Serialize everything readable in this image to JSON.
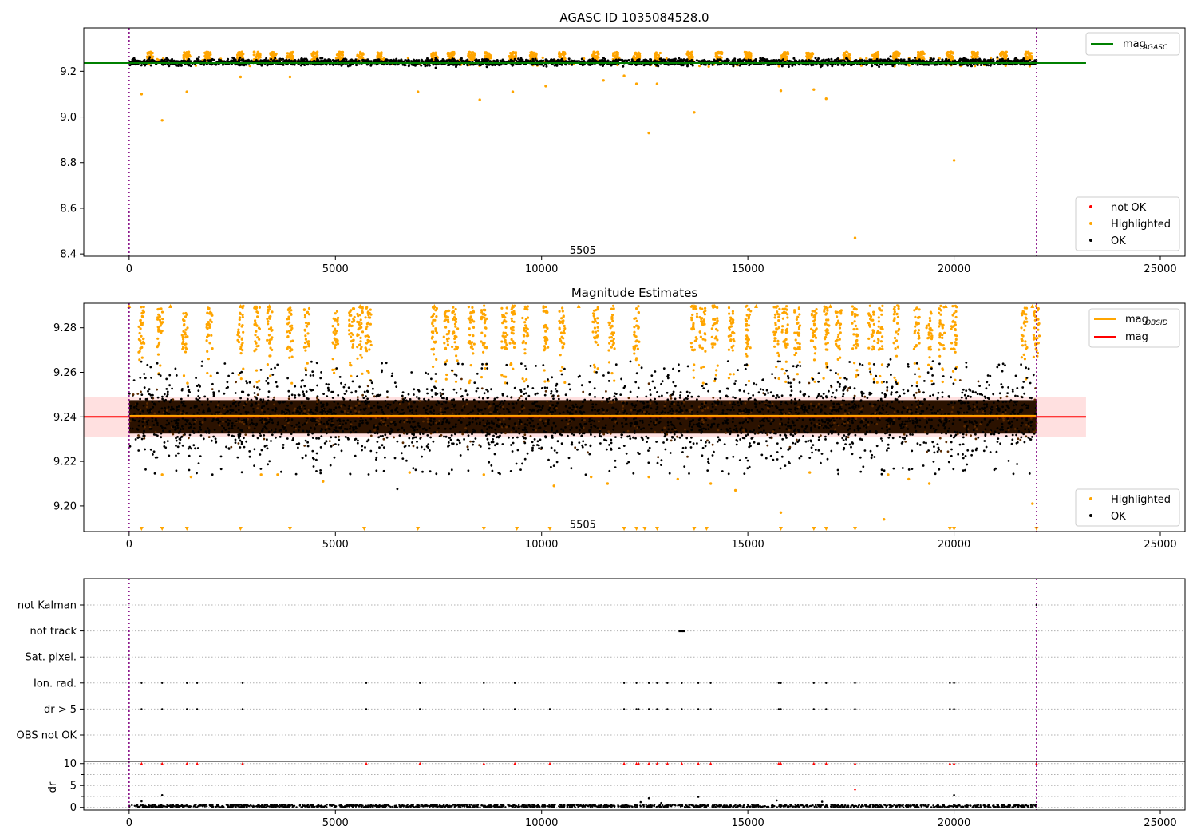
{
  "figure": {
    "title": "AGASC ID 1035084528.0"
  },
  "chart_data": [
    {
      "type": "scatter",
      "title": "AGASC ID 1035084528.0",
      "xlim": [
        -1100,
        25600
      ],
      "ylim": [
        8.39,
        9.39
      ],
      "xticks": [
        0,
        5000,
        10000,
        15000,
        20000,
        25000
      ],
      "yticks": [
        8.4,
        8.6,
        8.8,
        9.0,
        9.2
      ],
      "ytick_decimals": 1,
      "vlines": [
        0,
        22000
      ],
      "obs_label": {
        "text": "5505",
        "x": 11000,
        "y": 8.415
      },
      "legend_lines": [
        {
          "label": "mag",
          "sub": "AGASC",
          "color": "#008000"
        }
      ],
      "legend_points": [
        {
          "label": "not OK",
          "color": "#ff0000"
        },
        {
          "label": "Highlighted",
          "color": "#ffa500"
        },
        {
          "label": "OK",
          "color": "#000000"
        }
      ],
      "hline": {
        "y": 9.236,
        "x0": -1100,
        "x1": 23200,
        "color": "#008000"
      },
      "ok_band": {
        "x0": 0,
        "x1": 22000,
        "center": 9.24,
        "halfwidth": 0.012
      },
      "highlight_columns": [
        500,
        1400,
        1900,
        2700,
        3100,
        3500,
        3900,
        4500,
        5100,
        5600,
        6100,
        7400,
        7800,
        8300,
        8700,
        9300,
        9800,
        10500,
        11300,
        11800,
        12300,
        12800,
        13600,
        14300,
        15000,
        15900,
        16500,
        17400,
        18100,
        18600,
        19200,
        19900,
        20500,
        21200,
        21800
      ],
      "highlight_column_range": [
        9.245,
        9.285
      ],
      "highlight_outliers": [
        {
          "x": 300,
          "y": 9.1
        },
        {
          "x": 800,
          "y": 8.985
        },
        {
          "x": 1400,
          "y": 9.11
        },
        {
          "x": 2700,
          "y": 9.175
        },
        {
          "x": 3900,
          "y": 9.175
        },
        {
          "x": 7000,
          "y": 9.11
        },
        {
          "x": 8500,
          "y": 9.075
        },
        {
          "x": 9300,
          "y": 9.11
        },
        {
          "x": 10100,
          "y": 9.135
        },
        {
          "x": 11500,
          "y": 9.16
        },
        {
          "x": 12000,
          "y": 9.18
        },
        {
          "x": 12300,
          "y": 9.145
        },
        {
          "x": 12600,
          "y": 8.93
        },
        {
          "x": 12800,
          "y": 9.145
        },
        {
          "x": 13700,
          "y": 9.02
        },
        {
          "x": 15800,
          "y": 9.115
        },
        {
          "x": 16600,
          "y": 9.12
        },
        {
          "x": 16900,
          "y": 9.08
        },
        {
          "x": 17600,
          "y": 8.47
        },
        {
          "x": 20000,
          "y": 8.81
        }
      ]
    },
    {
      "type": "scatter",
      "title": "Magnitude Estimates",
      "xlim": [
        -1100,
        25600
      ],
      "ylim": [
        9.1885,
        9.291
      ],
      "xticks": [
        0,
        5000,
        10000,
        15000,
        20000,
        25000
      ],
      "yticks": [
        9.2,
        9.22,
        9.24,
        9.26,
        9.28
      ],
      "ytick_decimals": 2,
      "vlines": [
        0,
        22000
      ],
      "obs_label": {
        "text": "5505",
        "x": 11000,
        "y": 9.1915
      },
      "legend_lines": [
        {
          "label": "mag",
          "sub": "OBSID",
          "color": "#ffa500"
        },
        {
          "label": "mag",
          "sub": "",
          "color": "#ff0000"
        }
      ],
      "legend_points": [
        {
          "label": "Highlighted",
          "color": "#ffa500"
        },
        {
          "label": "OK",
          "color": "#000000"
        }
      ],
      "mag_line": {
        "y": 9.24,
        "x0": -1100,
        "x1": 23200,
        "color": "#ff0000"
      },
      "mag_band": {
        "y0": 9.231,
        "y1": 9.249,
        "x0": -1100,
        "x1": 23200
      },
      "obs_mag_line": {
        "y": 9.2405,
        "x0": 0,
        "x1": 22000,
        "color": "#ffa500"
      },
      "ok_band": {
        "x0": 0,
        "x1": 22000,
        "center": 9.24,
        "halfwidth": 0.009
      },
      "ok_outlier_range": [
        9.214,
        9.265
      ],
      "highlight_columns": [
        300,
        750,
        1350,
        1950,
        2700,
        3100,
        3400,
        3900,
        4300,
        5000,
        5400,
        5600,
        5800,
        7400,
        7700,
        7900,
        8300,
        8600,
        9100,
        9300,
        9600,
        10100,
        10500,
        11300,
        11700,
        12300,
        13700,
        13900,
        14200,
        14600,
        15000,
        15700,
        15900,
        16200,
        16600,
        16900,
        17200,
        17600,
        18000,
        18200,
        18600,
        19100,
        19400,
        19700,
        20000,
        21700,
        22000
      ],
      "highlight_column_range": [
        9.27,
        9.29
      ],
      "highlight_low": [
        {
          "x": 800,
          "y": 9.214
        },
        {
          "x": 1500,
          "y": 9.213
        },
        {
          "x": 3200,
          "y": 9.214
        },
        {
          "x": 3600,
          "y": 9.214
        },
        {
          "x": 4700,
          "y": 9.211
        },
        {
          "x": 6800,
          "y": 9.215
        },
        {
          "x": 8600,
          "y": 9.214
        },
        {
          "x": 10300,
          "y": 9.209
        },
        {
          "x": 11200,
          "y": 9.213
        },
        {
          "x": 11600,
          "y": 9.21
        },
        {
          "x": 12600,
          "y": 9.213
        },
        {
          "x": 13300,
          "y": 9.212
        },
        {
          "x": 14100,
          "y": 9.21
        },
        {
          "x": 14700,
          "y": 9.207
        },
        {
          "x": 15800,
          "y": 9.197
        },
        {
          "x": 16500,
          "y": 9.215
        },
        {
          "x": 18300,
          "y": 9.194
        },
        {
          "x": 18400,
          "y": 9.214
        },
        {
          "x": 18900,
          "y": 9.212
        },
        {
          "x": 19400,
          "y": 9.21
        },
        {
          "x": 21900,
          "y": 9.201
        }
      ],
      "clip_up": [
        0,
        1000,
        2700,
        3400,
        5600,
        7400,
        9300,
        10900,
        13700,
        14200,
        15200,
        17000,
        19800,
        21900
      ],
      "clip_down": [
        300,
        800,
        1400,
        2700,
        3900,
        5700,
        7000,
        8600,
        9400,
        10200,
        12000,
        12300,
        12500,
        12800,
        13700,
        14000,
        15800,
        16600,
        16900,
        17600,
        19900,
        20000,
        22000
      ]
    },
    {
      "type": "scatter",
      "title": "",
      "xlim": [
        -1100,
        25600
      ],
      "xticks": [
        0,
        5000,
        10000,
        15000,
        20000,
        25000
      ],
      "categories": [
        "not Kalman",
        "not track",
        "Sat. pixel.",
        "Ion. rad.",
        "dr > 5",
        "OBS not OK"
      ],
      "flag_events": {
        "Ion. rad.": [
          300,
          800,
          1400,
          1650,
          2750,
          5750,
          7050,
          8600,
          9350,
          12000,
          12300,
          12600,
          12800,
          13050,
          13400,
          13800,
          14100,
          15750,
          15800,
          16600,
          16900,
          17600,
          19900,
          20000
        ],
        "dr > 5": [
          300,
          800,
          1400,
          1650,
          2750,
          5750,
          7050,
          8600,
          9350,
          10200,
          12000,
          12300,
          12350,
          12600,
          12800,
          13050,
          13400,
          13800,
          14100,
          15750,
          15800,
          16600,
          16900,
          17600,
          19900,
          20000
        ],
        "not track": [
          13350,
          13400,
          13450
        ],
        "not Kalman": [
          22000
        ]
      },
      "vlines": [
        0,
        22000
      ]
    },
    {
      "type": "scatter",
      "title": "",
      "ylabel": "dr",
      "xlim": [
        -1100,
        25600
      ],
      "ylim": [
        -0.6,
        10.5
      ],
      "xticks": [
        0,
        5000,
        10000,
        15000,
        20000,
        25000
      ],
      "yticks": [
        0,
        5,
        10
      ],
      "dr_band": [
        0,
        0.6
      ],
      "dr_spikes": [
        {
          "x": 300,
          "y": 1.4
        },
        {
          "x": 800,
          "y": 2.8
        },
        {
          "x": 12400,
          "y": 1.2
        },
        {
          "x": 12600,
          "y": 2.1
        },
        {
          "x": 12900,
          "y": 1.0
        },
        {
          "x": 13800,
          "y": 2.4
        },
        {
          "x": 15700,
          "y": 1.6
        },
        {
          "x": 16800,
          "y": 1.3
        },
        {
          "x": 17600,
          "y": 4.1
        },
        {
          "x": 20000,
          "y": 2.8
        }
      ],
      "dr_red_at_10": [
        300,
        800,
        1400,
        1650,
        2750,
        5750,
        7050,
        8600,
        9350,
        10200,
        12000,
        12300,
        12350,
        12600,
        12800,
        13050,
        13400,
        13800,
        14100,
        15750,
        15800,
        16600,
        16900,
        17600,
        19900,
        20000,
        22000
      ],
      "vlines": [
        0,
        22000
      ]
    }
  ]
}
